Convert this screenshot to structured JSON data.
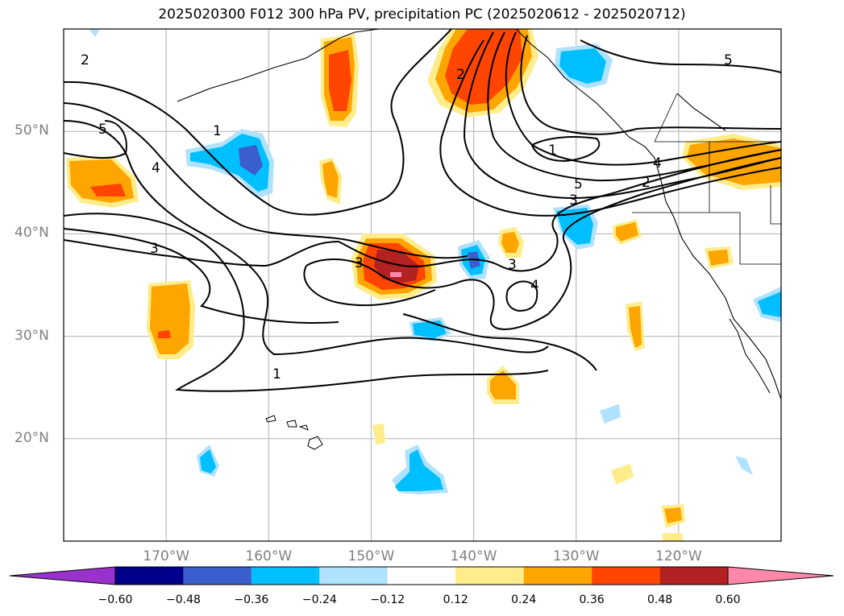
{
  "title": "2025020300 F012 300 hPa PV, precipitation PC (2025020612 - 2025020712)",
  "lat_labels": [
    {
      "text": "50°N",
      "lat": 50
    },
    {
      "text": "40°N",
      "lat": 40
    },
    {
      "text": "30°N",
      "lat": 30
    },
    {
      "text": "20°N",
      "lat": 20
    }
  ],
  "lon_labels": [
    {
      "text": "170°W",
      "lon": -170
    },
    {
      "text": "160°W",
      "lon": -160
    },
    {
      "text": "150°W",
      "lon": -150
    },
    {
      "text": "140°W",
      "lon": -140
    },
    {
      "text": "130°W",
      "lon": -130
    },
    {
      "text": "120°W",
      "lon": -120
    }
  ],
  "extent": {
    "lon_min": -180,
    "lon_max": -110,
    "lat_min": 10,
    "lat_max": 60
  },
  "colorbar": {
    "colors": [
      "#9932cc",
      "#00008b",
      "#3a5fcd",
      "#00bfff",
      "#b0e2ff",
      "#ffffff",
      "#ffec8b",
      "#ffa500",
      "#ff4500",
      "#b22222",
      "#ff88aa"
    ],
    "ticks": [
      "−0.60",
      "−0.48",
      "−0.36",
      "−0.24",
      "−0.12",
      "0.12",
      "0.24",
      "0.36",
      "0.48",
      "0.60"
    ],
    "extend": "both"
  },
  "contour_labels": [
    "2",
    "5",
    "1",
    "4",
    "3",
    "3",
    "3",
    "4",
    "1",
    "2",
    "1",
    "5",
    "3",
    "2",
    "4",
    "5"
  ]
}
